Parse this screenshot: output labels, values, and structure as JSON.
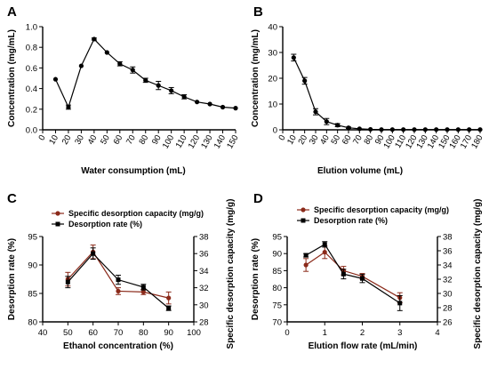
{
  "chart_data": [
    {
      "panel": "A",
      "type": "line",
      "xlabel": "Water consumption (mL)",
      "ylabel": "Concentration (mg/mL)",
      "xlim": [
        0,
        150
      ],
      "ylim": [
        0,
        1.0
      ],
      "xticks": [
        0,
        10,
        20,
        30,
        40,
        50,
        60,
        70,
        80,
        90,
        100,
        110,
        120,
        130,
        140,
        150
      ],
      "xtick_labels": [
        "0",
        "10",
        "20",
        "30",
        "40",
        "50",
        "60",
        "70",
        "80",
        "90",
        "100",
        "110",
        "120",
        "130",
        "140",
        "150"
      ],
      "yticks": [
        0,
        0.2,
        0.4,
        0.6,
        0.8,
        1.0
      ],
      "ytick_labels": [
        "0.0",
        "0.2",
        "0.4",
        "0.6",
        "0.8",
        "1.0"
      ],
      "series": [
        {
          "color": "#000000",
          "marker": "circle",
          "x": [
            10,
            20,
            30,
            40,
            50,
            60,
            70,
            80,
            90,
            100,
            110,
            120,
            130,
            140,
            150
          ],
          "values": [
            0.49,
            0.22,
            0.62,
            0.88,
            0.75,
            0.64,
            0.58,
            0.48,
            0.43,
            0.38,
            0.32,
            0.27,
            0.25,
            0.22,
            0.21
          ],
          "errors": [
            0,
            0.02,
            0,
            0.01,
            0,
            0.02,
            0.03,
            0.02,
            0.04,
            0.03,
            0.02,
            0,
            0,
            0,
            0
          ]
        }
      ]
    },
    {
      "panel": "B",
      "type": "line",
      "xlabel": "Elution volume (mL)",
      "ylabel": "Concentration (mg/mL)",
      "xlim": [
        0,
        180
      ],
      "ylim": [
        0,
        40
      ],
      "xticks": [
        0,
        10,
        20,
        30,
        40,
        50,
        60,
        70,
        80,
        90,
        100,
        110,
        120,
        130,
        140,
        150,
        160,
        170,
        180
      ],
      "xtick_labels": [
        "0",
        "10",
        "20",
        "30",
        "40",
        "50",
        "60",
        "70",
        "80",
        "90",
        "100",
        "110",
        "120",
        "130",
        "140",
        "150",
        "160",
        "170",
        "180"
      ],
      "yticks": [
        0,
        10,
        20,
        30,
        40
      ],
      "ytick_labels": [
        "0",
        "10",
        "20",
        "30",
        "40"
      ],
      "series": [
        {
          "color": "#000000",
          "marker": "circle",
          "x": [
            10,
            20,
            30,
            40,
            50,
            60,
            70,
            80,
            90,
            100,
            110,
            120,
            130,
            140,
            150,
            160,
            170,
            180
          ],
          "values": [
            28,
            19,
            7,
            3.2,
            1.8,
            0.8,
            0.4,
            0.2,
            0.1,
            0.1,
            0.1,
            0.1,
            0.1,
            0.1,
            0.1,
            0.1,
            0.1,
            0.1
          ],
          "errors": [
            1.3,
            1.3,
            1.2,
            1.2,
            0.6,
            0.3,
            0,
            0,
            0,
            0,
            0,
            0,
            0,
            0,
            0,
            0,
            0,
            0
          ]
        }
      ]
    },
    {
      "panel": "C",
      "type": "line",
      "xlabel": "Ethanol concentration (%)",
      "ylabel": "Desorption rate (%)",
      "y2label": "Specific desorption capacity (mg/g)",
      "xlim": [
        40,
        100
      ],
      "ylim": [
        80,
        95
      ],
      "y2lim": [
        28,
        38
      ],
      "xticks": [
        40,
        50,
        60,
        70,
        80,
        90,
        100
      ],
      "xtick_labels": [
        "40",
        "50",
        "60",
        "70",
        "80",
        "90",
        "100"
      ],
      "yticks": [
        80,
        85,
        90,
        95
      ],
      "ytick_labels": [
        "80",
        "85",
        "90",
        "95"
      ],
      "y2ticks": [
        28,
        30,
        32,
        34,
        36,
        38
      ],
      "y2tick_labels": [
        "28",
        "30",
        "32",
        "34",
        "36",
        "38"
      ],
      "legend": "top-left",
      "series": [
        {
          "name": "Specific desorption capacity (mg/g)",
          "axis": "right",
          "color": "#8b2a1a",
          "marker": "circle",
          "x": [
            50,
            60,
            70,
            80,
            90
          ],
          "values": [
            33.0,
            36.2,
            31.6,
            31.5,
            30.8
          ],
          "errors": [
            0.8,
            0.8,
            0.4,
            0.3,
            0.7
          ]
        },
        {
          "name": "Desorption rate (%)",
          "axis": "left",
          "color": "#000000",
          "marker": "square",
          "x": [
            50,
            60,
            70,
            80,
            90
          ],
          "values": [
            87.0,
            92.0,
            87.4,
            86.1,
            82.4
          ],
          "errors": [
            1.0,
            1.0,
            0.8,
            0.5,
            0.4
          ]
        }
      ]
    },
    {
      "panel": "D",
      "type": "line",
      "xlabel": "Elution flow rate (mL/min)",
      "ylabel": "Desorption rate (%)",
      "y2label": "Specific desorption capacity (mg/g)",
      "xlim": [
        0,
        4
      ],
      "ylim": [
        70,
        95
      ],
      "y2lim": [
        26,
        38
      ],
      "xticks": [
        0,
        1,
        2,
        3,
        4
      ],
      "xtick_labels": [
        "0",
        "1",
        "2",
        "3",
        "4"
      ],
      "yticks": [
        70,
        75,
        80,
        85,
        90,
        95
      ],
      "ytick_labels": [
        "70",
        "75",
        "80",
        "85",
        "90",
        "95"
      ],
      "y2ticks": [
        26,
        28,
        30,
        32,
        34,
        36,
        38
      ],
      "y2tick_labels": [
        "26",
        "28",
        "30",
        "32",
        "34",
        "36",
        "38"
      ],
      "legend": "top-left",
      "series": [
        {
          "name": "Specific desorption capacity (mg/g)",
          "axis": "right",
          "color": "#8b2a1a",
          "marker": "circle",
          "x": [
            0.5,
            1.0,
            1.5,
            2.0,
            3.0
          ],
          "values": [
            34.0,
            35.8,
            33.2,
            32.4,
            29.4
          ],
          "errors": [
            0.9,
            0.9,
            0.6,
            0.4,
            0.7
          ]
        },
        {
          "name": "Desorption rate (%)",
          "axis": "left",
          "color": "#000000",
          "marker": "square",
          "x": [
            0.5,
            1.0,
            1.5,
            2.0,
            3.0
          ],
          "values": [
            89.5,
            92.7,
            84.0,
            82.7,
            75.5
          ],
          "errors": [
            0.5,
            0.8,
            1.4,
            1.2,
            2.2
          ]
        }
      ]
    }
  ]
}
